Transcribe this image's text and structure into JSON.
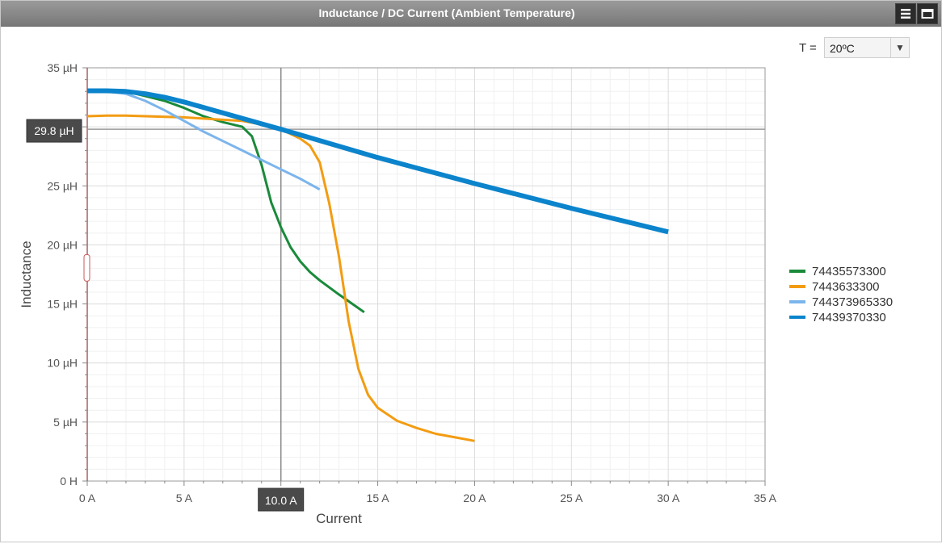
{
  "window": {
    "title": "Inductance / DC Current (Ambient Temperature)"
  },
  "icons": {
    "menu": "hamburger-menu-icon",
    "window": "window-maximize-icon"
  },
  "temperature": {
    "label": "T =",
    "selected": "20ºC"
  },
  "crosshair": {
    "y_label": "29.8 µH",
    "x_label": "10.0 A"
  },
  "chart_data": {
    "type": "line",
    "xlabel": "Current",
    "ylabel": "Inductance",
    "xlim": [
      0,
      35
    ],
    "ylim": [
      0,
      35
    ],
    "x_ticks": [
      0,
      5,
      10,
      15,
      20,
      25,
      30,
      35
    ],
    "y_ticks": [
      0,
      5,
      10,
      15,
      20,
      25,
      30,
      35
    ],
    "x_tick_labels": [
      "0 A",
      "5 A",
      "10 A",
      "15 A",
      "20 A",
      "25 A",
      "30 A",
      "35 A"
    ],
    "y_tick_labels": [
      "0 H",
      "5 µH",
      "10 µH",
      "15 µH",
      "20 µH",
      "25 µH",
      "30 µH",
      "35 µH"
    ],
    "grid": true,
    "legend_position": "right",
    "crosshair_point": {
      "x": 10.0,
      "y": 29.8
    },
    "series": [
      {
        "name": "74435573300",
        "color": "#1a8a3a",
        "width": 3,
        "x": [
          0,
          1,
          2,
          3,
          4,
          5,
          6,
          7,
          8,
          8.5,
          9,
          9.5,
          10,
          10.5,
          11,
          11.5,
          12,
          13,
          14.3
        ],
        "y": [
          33,
          33.05,
          33,
          32.6,
          32.2,
          31.6,
          30.9,
          30.4,
          30,
          29.2,
          26.8,
          23.6,
          21.5,
          19.8,
          18.6,
          17.7,
          17,
          15.8,
          14.3
        ]
      },
      {
        "name": "7443633300",
        "color": "#f39c12",
        "width": 3,
        "x": [
          0,
          1,
          2,
          3,
          4,
          5,
          6,
          7,
          8,
          9,
          10,
          11,
          11.5,
          12,
          12.5,
          13,
          13.5,
          14,
          14.5,
          15,
          16,
          17,
          18,
          19,
          20
        ],
        "y": [
          30.9,
          30.95,
          30.95,
          30.9,
          30.85,
          30.8,
          30.7,
          30.6,
          30.5,
          30.2,
          29.8,
          29,
          28.4,
          27,
          23.5,
          19,
          13.5,
          9.5,
          7.3,
          6.2,
          5.1,
          4.5,
          4,
          3.7,
          3.4
        ]
      },
      {
        "name": "744373965330",
        "color": "#7cb5ec",
        "width": 3,
        "x": [
          0,
          1,
          2,
          3,
          4,
          5,
          6,
          7,
          8,
          9,
          10,
          11,
          12
        ],
        "y": [
          33,
          33,
          32.8,
          32.2,
          31.4,
          30.5,
          29.6,
          28.8,
          28,
          27.2,
          26.4,
          25.6,
          24.7
        ]
      },
      {
        "name": "74439370330",
        "color": "#0b84cc",
        "width": 6,
        "x": [
          0,
          1,
          2,
          3,
          4,
          5,
          10,
          15,
          20,
          25,
          30
        ],
        "y": [
          33.05,
          33.05,
          33.0,
          32.8,
          32.5,
          32.1,
          29.8,
          27.4,
          25.2,
          23.1,
          21.1
        ]
      }
    ]
  }
}
